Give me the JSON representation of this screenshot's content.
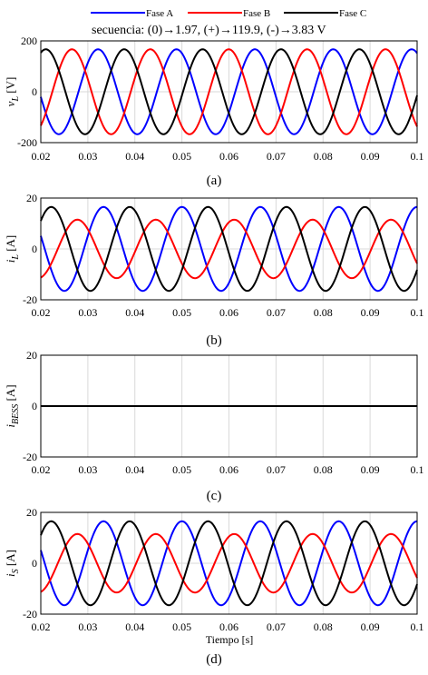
{
  "legend": {
    "entries": [
      {
        "label": "Fase A",
        "color": "#0000ff"
      },
      {
        "label": "Fase B",
        "color": "#ff0000"
      },
      {
        "label": "Fase C",
        "color": "#000000"
      }
    ]
  },
  "annotation": "secuencia: (0)→1.97, (+)→119.9, (-)→3.83 V",
  "xlabel": "Tiempo [s]",
  "chart_data": [
    {
      "type": "line",
      "caption": "(a)",
      "ylabel_main": "v",
      "ylabel_sub": "L",
      "ylabel_unit": "[V]",
      "xlim": [
        0.02,
        0.1
      ],
      "ylim": [
        -200,
        200
      ],
      "yticks": [
        "200",
        "0",
        "-200"
      ],
      "ytick_values": [
        200,
        0,
        -200
      ],
      "xticks": [
        "0.02",
        "0.03",
        "0.04",
        "0.05",
        "0.06",
        "0.07",
        "0.08",
        "0.09",
        "0.1"
      ],
      "grid": true,
      "frequency_hz": 60,
      "series": [
        {
          "name": "Fase A",
          "amplitude": 167,
          "phase_deg": 115,
          "color": "#0000ff"
        },
        {
          "name": "Fase B",
          "amplitude": 167,
          "phase_deg": -125,
          "color": "#ff0000"
        },
        {
          "name": "Fase C",
          "amplitude": 167,
          "phase_deg": -5,
          "color": "#000000"
        }
      ]
    },
    {
      "type": "line",
      "caption": "(b)",
      "ylabel_main": "i",
      "ylabel_sub": "L",
      "ylabel_unit": "[A]",
      "xlim": [
        0.02,
        0.1
      ],
      "ylim": [
        -20,
        20
      ],
      "yticks": [
        "20",
        "0",
        "-20"
      ],
      "ytick_values": [
        20,
        0,
        -20
      ],
      "xticks": [
        "0.02",
        "0.03",
        "0.04",
        "0.05",
        "0.06",
        "0.07",
        "0.08",
        "0.09",
        "0.1"
      ],
      "grid": true,
      "frequency_hz": 60,
      "series": [
        {
          "name": "Fase A",
          "amplitude": 16.5,
          "phase_deg": 90,
          "color": "#0000ff"
        },
        {
          "name": "Fase B",
          "amplitude": 11.5,
          "phase_deg": -150,
          "color": "#ff0000"
        },
        {
          "name": "Fase C",
          "amplitude": 16.5,
          "phase_deg": -30,
          "color": "#000000"
        }
      ]
    },
    {
      "type": "line",
      "caption": "(c)",
      "ylabel_main": "i",
      "ylabel_sub": "BESS",
      "ylabel_unit": "[A]",
      "xlim": [
        0.02,
        0.1
      ],
      "ylim": [
        -20,
        20
      ],
      "yticks": [
        "20",
        "0",
        "-20"
      ],
      "ytick_values": [
        20,
        0,
        -20
      ],
      "xticks": [
        "0.02",
        "0.03",
        "0.04",
        "0.05",
        "0.06",
        "0.07",
        "0.08",
        "0.09",
        "0.1"
      ],
      "grid": true,
      "frequency_hz": 60,
      "series": [
        {
          "name": "Fase A",
          "amplitude": 0,
          "phase_deg": 0,
          "color": "#0000ff"
        },
        {
          "name": "Fase B",
          "amplitude": 0,
          "phase_deg": 0,
          "color": "#ff0000"
        },
        {
          "name": "Fase C",
          "amplitude": 0,
          "phase_deg": 0,
          "color": "#000000"
        }
      ]
    },
    {
      "type": "line",
      "caption": "(d)",
      "ylabel_main": "i",
      "ylabel_sub": "S",
      "ylabel_unit": "[A]",
      "xlim": [
        0.02,
        0.1
      ],
      "ylim": [
        -20,
        20
      ],
      "yticks": [
        "20",
        "0",
        "-20"
      ],
      "ytick_values": [
        20,
        0,
        -20
      ],
      "xticks": [
        "0.02",
        "0.03",
        "0.04",
        "0.05",
        "0.06",
        "0.07",
        "0.08",
        "0.09",
        "0.1"
      ],
      "grid": true,
      "frequency_hz": 60,
      "series": [
        {
          "name": "Fase A",
          "amplitude": 16.5,
          "phase_deg": 90,
          "color": "#0000ff"
        },
        {
          "name": "Fase B",
          "amplitude": 11.5,
          "phase_deg": -150,
          "color": "#ff0000"
        },
        {
          "name": "Fase C",
          "amplitude": 16.5,
          "phase_deg": -30,
          "color": "#000000"
        }
      ]
    }
  ]
}
